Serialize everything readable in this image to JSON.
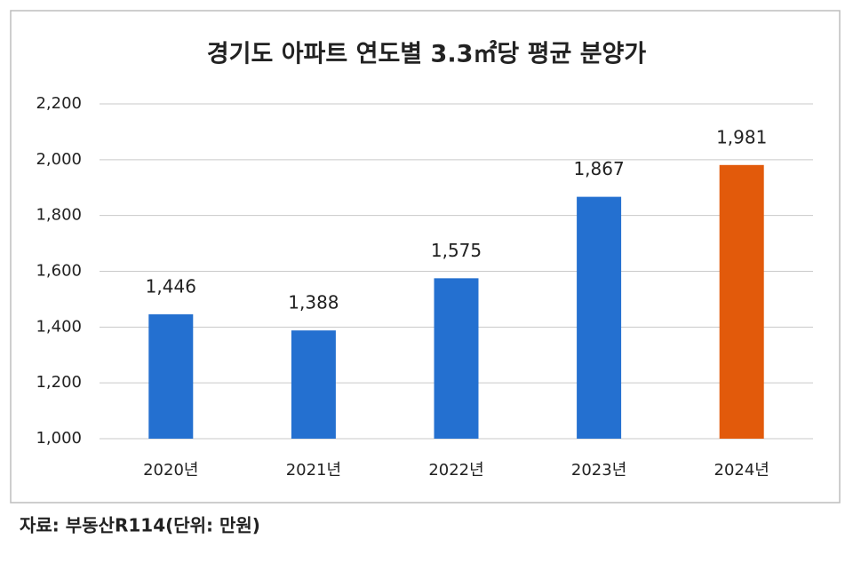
{
  "chart_data": {
    "type": "bar",
    "title": "경기도 아파트 연도별 3.3㎡당 평균 분양가",
    "categories": [
      "2020년",
      "2021년",
      "2022년",
      "2023년",
      "2024년"
    ],
    "values": [
      1446,
      1388,
      1575,
      1867,
      1981
    ],
    "value_labels": [
      "1,446",
      "1,388",
      "1,575",
      "1,867",
      "1,981"
    ],
    "colors": [
      "#2470d0",
      "#2470d0",
      "#2470d0",
      "#2470d0",
      "#e25a0b"
    ],
    "ylim": [
      1000,
      2200
    ],
    "yticks": [
      {
        "value": 1000,
        "label": "1,000"
      },
      {
        "value": 1200,
        "label": "1,200"
      },
      {
        "value": 1400,
        "label": "1,400"
      },
      {
        "value": 1600,
        "label": "1,600"
      },
      {
        "value": 1800,
        "label": "1,800"
      },
      {
        "value": 2000,
        "label": "2,000"
      },
      {
        "value": 2200,
        "label": "2,200"
      }
    ],
    "grid": true,
    "source": "자료: 부동산R114(단위: 만원)"
  }
}
